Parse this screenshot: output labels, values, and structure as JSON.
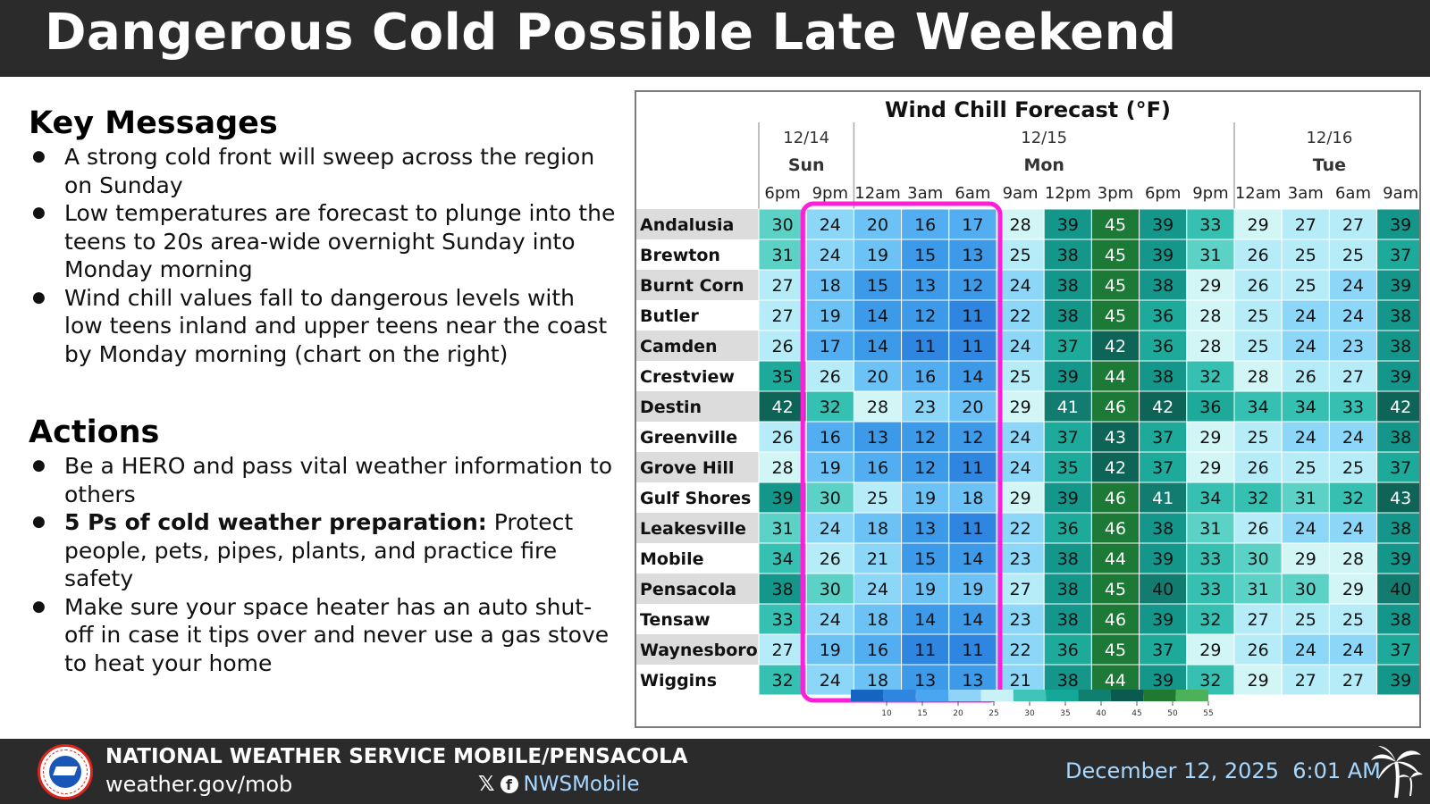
{
  "header": {
    "title": "Dangerous Cold Possible Late Weekend"
  },
  "key_messages": {
    "title": "Key Messages",
    "items": [
      "A strong cold front will sweep across the region on Sunday",
      "Low temperatures are forecast to plunge into the teens to 20s area-wide overnight Sunday into Monday morning",
      "Wind chill values fall to dangerous levels with low teens inland and upper teens near the coast by Monday morning (chart on the right)"
    ]
  },
  "actions": {
    "title": "Actions",
    "items": [
      {
        "bold": "",
        "text": "Be a HERO and pass vital weather information to others"
      },
      {
        "bold": "5 Ps of cold weather preparation:",
        "text": " Protect people, pets, pipes, plants, and practice fire safety"
      },
      {
        "bold": "",
        "text": "Make sure your space heater has an auto shut-off in case it tips over and never use a gas stove to heat your home"
      }
    ]
  },
  "chart_data": {
    "type": "heatmap",
    "title": "Wind Chill Forecast (°F)",
    "days": [
      {
        "date": "12/14",
        "day": "Sun",
        "span": 2
      },
      {
        "date": "12/15",
        "day": "Mon",
        "span": 8
      },
      {
        "date": "12/16",
        "day": "Tue",
        "span": 4
      }
    ],
    "times": [
      "6pm",
      "9pm",
      "12am",
      "3am",
      "6am",
      "9am",
      "12pm",
      "3pm",
      "6pm",
      "9pm",
      "12am",
      "3am",
      "6am",
      "9am"
    ],
    "locations": [
      "Andalusia",
      "Brewton",
      "Burnt Corn",
      "Butler",
      "Camden",
      "Crestview",
      "Destin",
      "Greenville",
      "Grove Hill",
      "Gulf Shores",
      "Leakesville",
      "Mobile",
      "Pensacola",
      "Tensaw",
      "Waynesboro",
      "Wiggins"
    ],
    "values": [
      [
        30,
        24,
        20,
        16,
        17,
        28,
        39,
        45,
        39,
        33,
        29,
        27,
        27,
        39
      ],
      [
        31,
        24,
        19,
        15,
        13,
        25,
        38,
        45,
        39,
        31,
        26,
        25,
        25,
        37
      ],
      [
        27,
        18,
        15,
        13,
        12,
        24,
        38,
        45,
        38,
        29,
        26,
        25,
        24,
        39
      ],
      [
        27,
        19,
        14,
        12,
        11,
        22,
        38,
        45,
        36,
        28,
        25,
        24,
        24,
        38
      ],
      [
        26,
        17,
        14,
        11,
        11,
        24,
        37,
        42,
        36,
        28,
        25,
        24,
        23,
        38
      ],
      [
        35,
        26,
        20,
        16,
        14,
        25,
        39,
        44,
        38,
        32,
        28,
        26,
        27,
        39
      ],
      [
        42,
        32,
        28,
        23,
        20,
        29,
        41,
        46,
        42,
        36,
        34,
        34,
        33,
        42
      ],
      [
        26,
        16,
        13,
        12,
        12,
        24,
        37,
        43,
        37,
        29,
        25,
        24,
        24,
        38
      ],
      [
        28,
        19,
        16,
        12,
        11,
        24,
        35,
        42,
        37,
        29,
        26,
        25,
        25,
        37
      ],
      [
        39,
        30,
        25,
        19,
        18,
        29,
        39,
        46,
        41,
        34,
        32,
        31,
        32,
        43
      ],
      [
        31,
        24,
        18,
        13,
        11,
        22,
        36,
        46,
        38,
        31,
        26,
        24,
        24,
        38
      ],
      [
        34,
        26,
        21,
        15,
        14,
        23,
        38,
        44,
        39,
        33,
        30,
        29,
        28,
        39
      ],
      [
        38,
        30,
        24,
        19,
        19,
        27,
        38,
        45,
        40,
        33,
        31,
        30,
        29,
        40
      ],
      [
        33,
        24,
        18,
        14,
        14,
        23,
        38,
        46,
        39,
        32,
        27,
        25,
        25,
        38
      ],
      [
        27,
        19,
        16,
        11,
        11,
        22,
        36,
        45,
        37,
        29,
        26,
        24,
        24,
        37
      ],
      [
        32,
        24,
        18,
        13,
        13,
        21,
        38,
        44,
        39,
        32,
        29,
        27,
        27,
        39
      ]
    ],
    "highlight_columns": [
      1,
      4
    ],
    "highlight_color": "#ff1fd6",
    "colorbar_ticks": [
      10,
      15,
      20,
      25,
      30,
      35,
      40,
      45,
      50,
      55
    ],
    "colorbar_colors": [
      "#1565c0",
      "#2f86e0",
      "#4aa6f0",
      "#8fd4f8",
      "#c8f2f8",
      "#3fc4b8",
      "#14a898",
      "#0f7f70",
      "#0b5a4f",
      "#1f7a30",
      "#4cb25a"
    ]
  },
  "footer": {
    "org": "NATIONAL WEATHER SERVICE MOBILE/PENSACOLA",
    "url": "weather.gov/mob",
    "x_icon": "x-icon",
    "fb_icon": "facebook-icon",
    "social_handle": "NWSMobile",
    "date": "December 12, 2025",
    "time": "6:01 AM"
  }
}
